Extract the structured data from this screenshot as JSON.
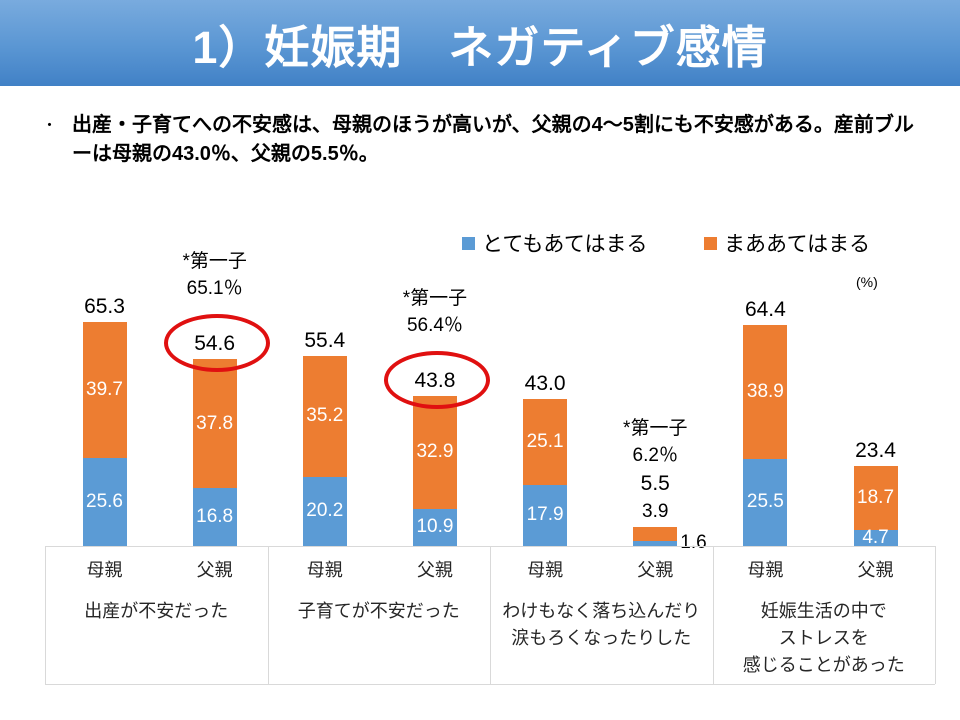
{
  "slide": {
    "title": "1）妊娠期　ネガティブ感情",
    "bullet_marker": "・",
    "bullet": "出産・子育てへの不安感は、母親のほうが高いが、父親の4～5割にも不安感がある。産前ブルーは母親の43.0％、父親の5.5％。"
  },
  "chart_data": {
    "type": "bar",
    "stacked": true,
    "unit_label": "(%)",
    "ylim": [
      0,
      70
    ],
    "grid": false,
    "legend_position": "top",
    "legend": [
      {
        "label": "とてもあてはまる",
        "color": "#5B9BD5"
      },
      {
        "label": "まああてはまる",
        "color": "#ED7D31"
      }
    ],
    "colors": {
      "totemo": "#5B9BD5",
      "maa": "#ED7D31",
      "circle": "#E01010"
    },
    "groups": [
      {
        "category": "出産が不安だった",
        "category_lines": [
          "出産が不安だった"
        ],
        "bars": [
          {
            "label": "母親",
            "totemo": 25.6,
            "maa": 39.7,
            "total": 65.3
          },
          {
            "label": "父親",
            "totemo": 16.8,
            "maa": 37.8,
            "total": 54.6,
            "circled": true,
            "note_lines": [
              "*第一子",
              "65.1％"
            ]
          }
        ]
      },
      {
        "category": "子育てが不安だった",
        "category_lines": [
          "子育てが不安だった"
        ],
        "bars": [
          {
            "label": "母親",
            "totemo": 20.2,
            "maa": 35.2,
            "total": 55.4
          },
          {
            "label": "父親",
            "totemo": 10.9,
            "maa": 32.9,
            "total": 43.8,
            "circled": true,
            "note_lines": [
              "*第一子",
              "56.4％"
            ]
          }
        ]
      },
      {
        "category": "わけもなく落ち込んだり涙もろくなったりした",
        "category_lines": [
          "わけもなく落ち込んだり",
          "涙もろくなったりした"
        ],
        "bars": [
          {
            "label": "母親",
            "totemo": 17.9,
            "maa": 25.1,
            "total": 43.0
          },
          {
            "label": "父親",
            "totemo": 1.6,
            "maa": 3.9,
            "total": 5.5,
            "note_lines": [
              "*第一子",
              "6.2％"
            ],
            "maa_label_outside": true,
            "totemo_label_right": true
          }
        ]
      },
      {
        "category": "妊娠生活の中でストレスを感じることがあった",
        "category_lines": [
          "妊娠生活の中で",
          "ストレスを",
          "感じることがあった"
        ],
        "bars": [
          {
            "label": "母親",
            "totemo": 25.5,
            "maa": 38.9,
            "total": 64.4
          },
          {
            "label": "父親",
            "totemo": 4.7,
            "maa": 18.7,
            "total": 23.4
          }
        ]
      }
    ]
  }
}
